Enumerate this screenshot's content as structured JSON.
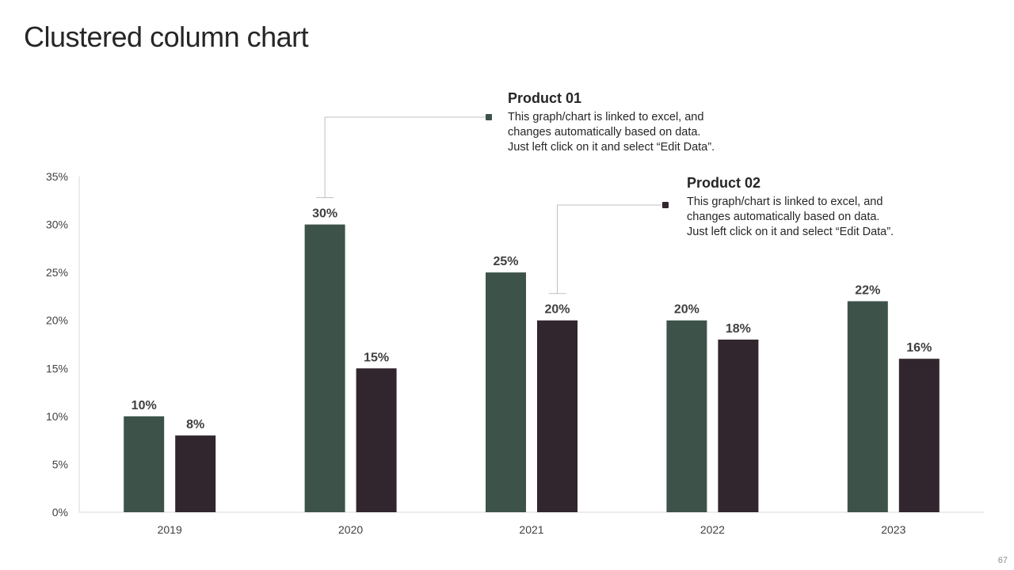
{
  "slide": {
    "title": "Clustered column chart",
    "page_number": "67"
  },
  "callouts": [
    {
      "title": "Product 01",
      "text_lines": [
        "This graph/chart is linked to excel, and",
        "changes automatically based on data.",
        "Just left click on it and select “Edit Data”."
      ],
      "color": "#3d5349"
    },
    {
      "title": "Product 02",
      "text_lines": [
        "This graph/chart is linked to excel, and",
        "changes automatically based on data.",
        "Just left click on it and select “Edit Data”."
      ],
      "color": "#32262e"
    }
  ],
  "chart_data": {
    "type": "bar",
    "title": "Clustered column chart",
    "categories": [
      "2019",
      "2020",
      "2021",
      "2022",
      "2023"
    ],
    "series": [
      {
        "name": "Product 01",
        "color": "#3d5349",
        "values": [
          10,
          30,
          25,
          20,
          22
        ]
      },
      {
        "name": "Product 02",
        "color": "#32262e",
        "values": [
          8,
          15,
          20,
          18,
          16
        ]
      }
    ],
    "ylim": [
      0,
      35
    ],
    "y_ticks": [
      0,
      5,
      10,
      15,
      20,
      25,
      30,
      35
    ],
    "y_tick_labels": [
      "0%",
      "5%",
      "10%",
      "15%",
      "20%",
      "25%",
      "30%",
      "35%"
    ],
    "value_suffix": "%",
    "grid": false,
    "legend": "callouts"
  }
}
